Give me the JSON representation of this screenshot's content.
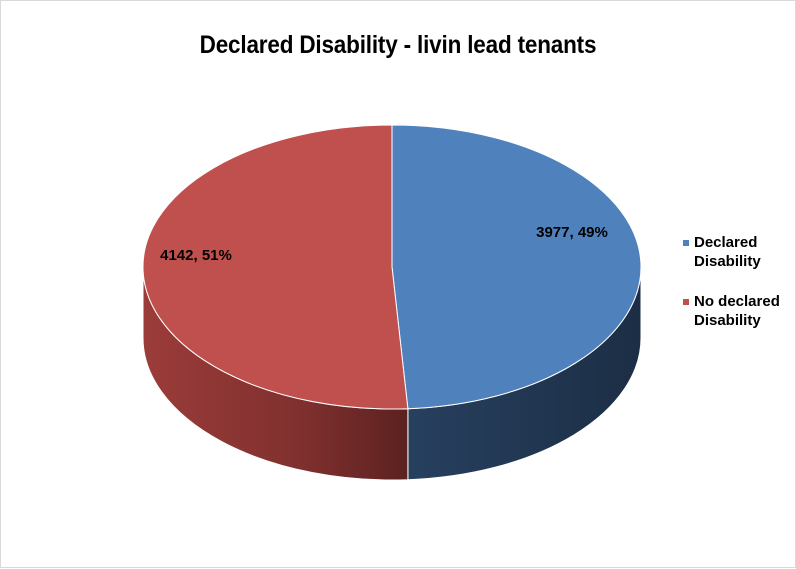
{
  "chart_data": {
    "type": "pie",
    "title": "Declared Disability - livin lead tenants",
    "slices": [
      {
        "label": "Declared Disability",
        "value": 3977,
        "percent": 49,
        "color": "#4f81bd",
        "side_color": "#243652",
        "data_label": "3977, 49%"
      },
      {
        "label": "No declared Disability",
        "value": 4142,
        "percent": 51,
        "color": "#c0504d",
        "side_color": "#7a2e2c",
        "data_label": "4142, 51%"
      }
    ],
    "legend_position": "right",
    "style": "3d"
  }
}
